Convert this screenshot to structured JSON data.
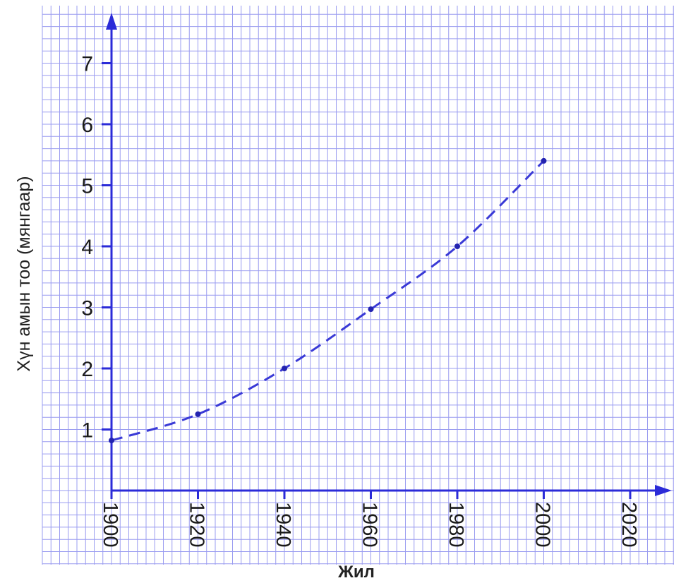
{
  "chart_data": {
    "type": "line",
    "title": "",
    "xlabel": "Жил",
    "ylabel": "Хүн амын тоо (мянгаар)",
    "x_ticks": [
      "1900",
      "1920",
      "1940",
      "1960",
      "1980",
      "2000",
      "2020"
    ],
    "y_ticks": [
      "1",
      "2",
      "3",
      "4",
      "5",
      "6",
      "7"
    ],
    "xlim": [
      1900,
      2020
    ],
    "ylim": [
      0,
      7
    ],
    "grid": true,
    "line_style": "dashed",
    "series": [
      {
        "x": [
          1900,
          1920,
          1940,
          1960,
          1980,
          2000
        ],
        "y": [
          0.82,
          1.25,
          2.0,
          2.97,
          4.0,
          5.4
        ]
      }
    ]
  },
  "colors": {
    "grid": "#9a9cf0",
    "axis": "#2b2bd8",
    "line": "#3a3ad6",
    "point": "#2323b0",
    "background": "#ffffff"
  }
}
